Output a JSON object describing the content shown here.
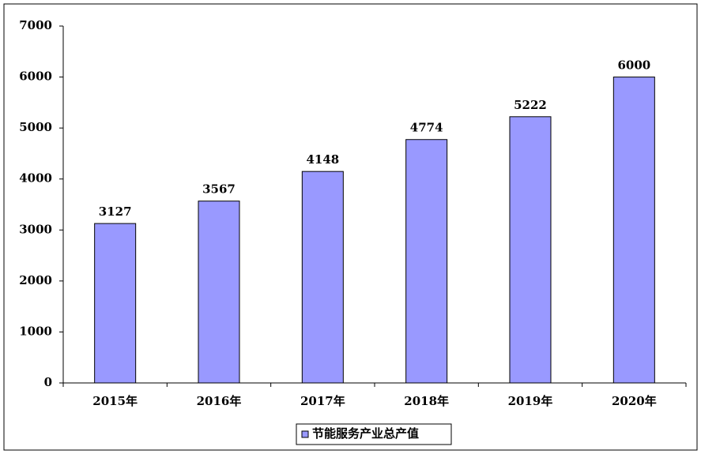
{
  "chart_data": {
    "type": "bar",
    "categories": [
      "2015年",
      "2016年",
      "2017年",
      "2018年",
      "2019年",
      "2020年"
    ],
    "series": [
      {
        "name": "节能服务产业总产值",
        "color": "#9999ff",
        "values": [
          3127,
          3567,
          4148,
          4774,
          5222,
          6000
        ]
      }
    ],
    "ylim": [
      0,
      7000
    ],
    "yticks": [
      0,
      1000,
      2000,
      3000,
      4000,
      5000,
      6000,
      7000
    ],
    "grid": false,
    "legend": "bottom",
    "data_labels": true
  }
}
